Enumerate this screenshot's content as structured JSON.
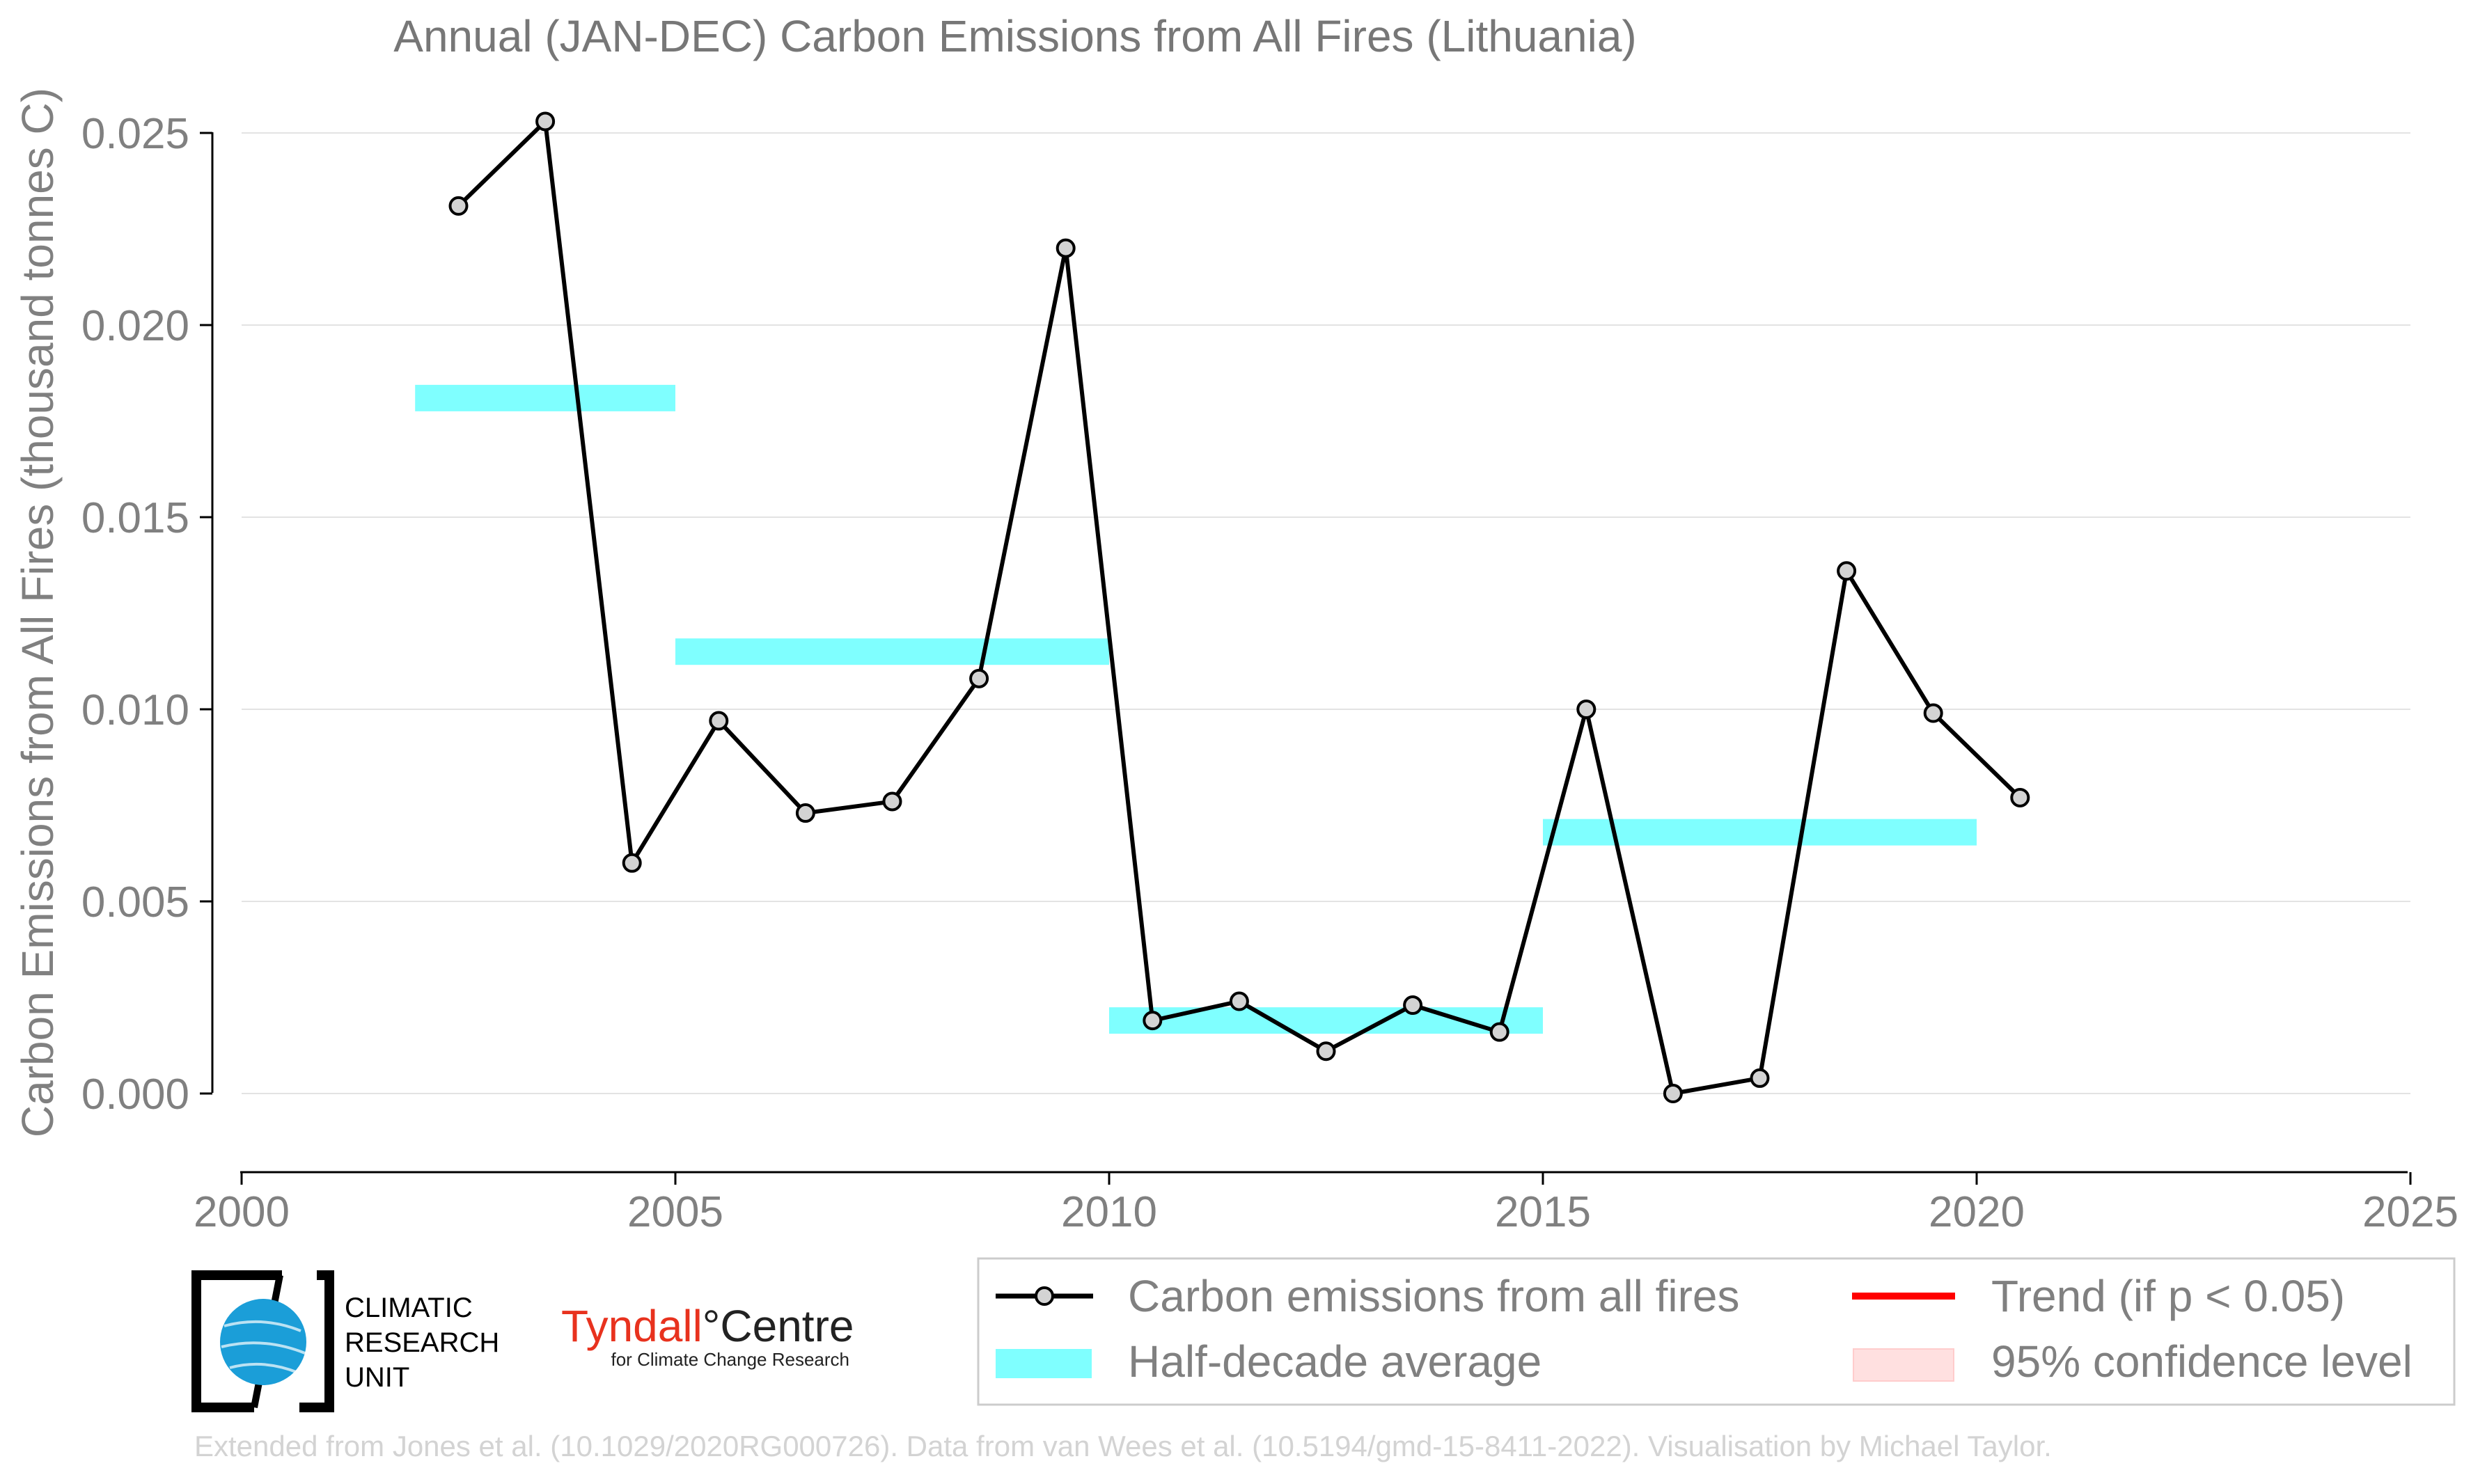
{
  "chart_data": {
    "type": "line",
    "title": "Annual (JAN-DEC) Carbon Emissions from All Fires (Lithuania)",
    "xlabel": "",
    "ylabel": "Carbon Emissions from All Fires (thousand tonnes C)",
    "xlim": [
      2000,
      2025
    ],
    "ylim": [
      0,
      0.025
    ],
    "x_ticks": [
      "2000",
      "2005",
      "2010",
      "2015",
      "2020",
      "2025"
    ],
    "y_ticks": [
      "0.000",
      "0.005",
      "0.010",
      "0.015",
      "0.020",
      "0.025"
    ],
    "grid": "horizontal",
    "series": [
      {
        "name": "Carbon emissions from all fires",
        "color": "#000000",
        "marker_fill": "#d3d3d3",
        "x": [
          2002.5,
          2003.5,
          2004.5,
          2005.5,
          2006.5,
          2007.5,
          2008.5,
          2009.5,
          2010.5,
          2011.5,
          2012.5,
          2013.5,
          2014.5,
          2015.5,
          2016.5,
          2017.5,
          2018.5,
          2019.5,
          2020.5
        ],
        "values": [
          0.0231,
          0.0253,
          0.006,
          0.0097,
          0.0073,
          0.0076,
          0.0108,
          0.022,
          0.0019,
          0.0024,
          0.0011,
          0.0023,
          0.0016,
          0.01,
          0.0,
          0.0004,
          0.0136,
          0.0099,
          0.0077
        ]
      },
      {
        "name": "Half-decade average",
        "color": "#7fffff",
        "segments": [
          {
            "x_start": 2002,
            "x_end": 2005,
            "value": 0.0181
          },
          {
            "x_start": 2005,
            "x_end": 2010,
            "value": 0.0115
          },
          {
            "x_start": 2010,
            "x_end": 2015,
            "value": 0.0019
          },
          {
            "x_start": 2015,
            "x_end": 2020,
            "value": 0.0068
          }
        ]
      }
    ],
    "legend": {
      "placement": "bottom-right",
      "entries": [
        {
          "label": "Carbon emissions from all fires",
          "kind": "line-marker",
          "color": "#000000"
        },
        {
          "label": "Trend (if p < 0.05)",
          "kind": "line",
          "color": "#ff0000"
        },
        {
          "label": "Half-decade average",
          "kind": "band",
          "color": "#7fffff"
        },
        {
          "label": "95% confidence level",
          "kind": "patch",
          "color": "#ffe0e0"
        }
      ]
    },
    "credit": "Extended from Jones et al. (10.1029/2020RG000726). Data from van Wees et al. (10.5194/gmd-15-8411-2022). Visualisation by Michael Taylor."
  },
  "logos": {
    "cru": {
      "line1": "CLIMATIC",
      "line2": "RESEARCH",
      "line3": "UNIT",
      "icon": "globe-icon"
    },
    "tyndall": {
      "name": "Tyndall",
      "suffix": "°Centre",
      "tagline": "for Climate Change Research",
      "color": "#e8321e"
    }
  }
}
